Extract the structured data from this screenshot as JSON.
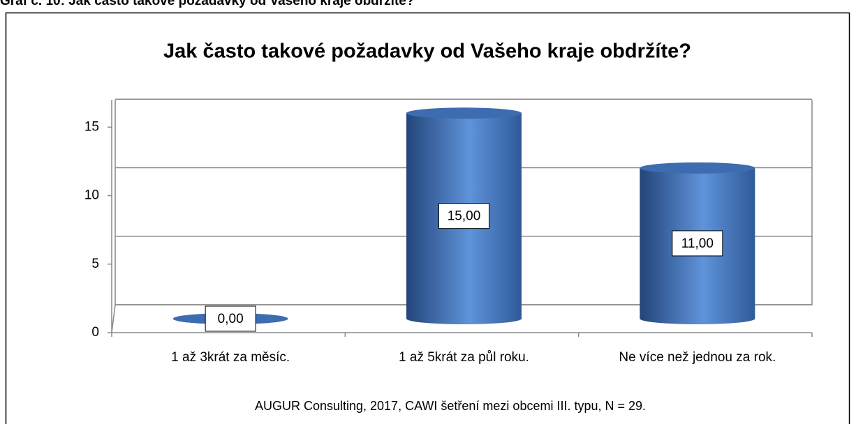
{
  "caption": "Graf č. 10: Jak často takové požadavky od Vašeho kraje obdržíte?",
  "chart_data": {
    "type": "bar3d",
    "title": "Jak často takové požadavky od Vašeho kraje obdržíte?",
    "categories": [
      "1 až 3krát za měsíc.",
      "1 až 5krát za půl roku.",
      "Ne více než jednou za rok."
    ],
    "values": [
      0,
      15,
      11
    ],
    "value_labels": [
      "0,00",
      "15,00",
      "11,00"
    ],
    "color": "#4a7cc0",
    "ylim": [
      0,
      17
    ],
    "yticks": [
      0,
      5,
      10,
      15
    ],
    "grid": true,
    "source": "AUGUR Consulting, 2017, CAWI šetření mezi obcemi III. typu, N = 29."
  }
}
